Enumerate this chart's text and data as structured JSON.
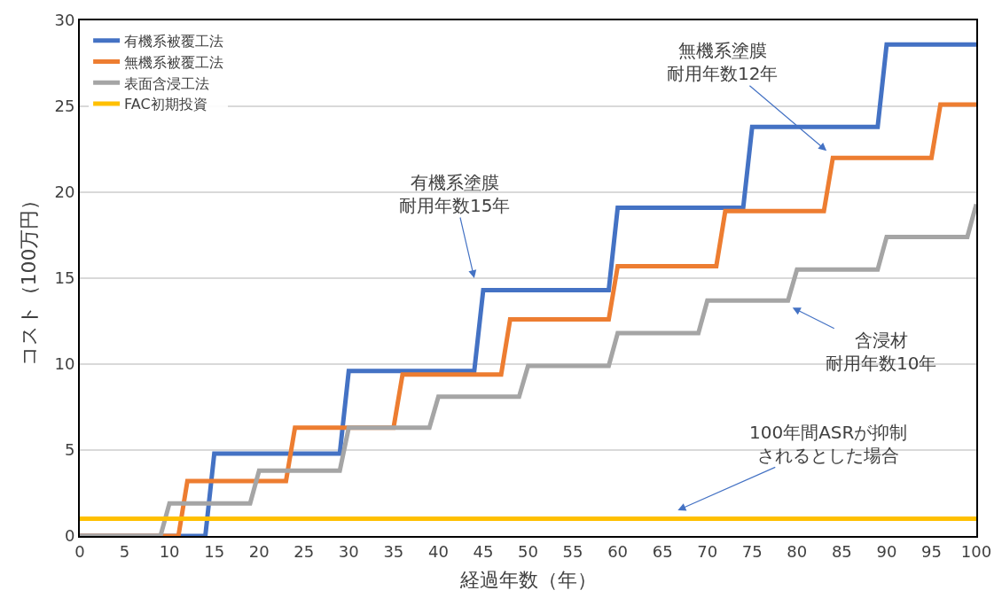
{
  "chart_data": {
    "type": "line",
    "xlabel": "経過年数（年）",
    "ylabel": "コスト（100万円）",
    "xlim": [
      0,
      100
    ],
    "xticks": [
      0,
      5,
      10,
      15,
      20,
      25,
      30,
      35,
      40,
      45,
      50,
      55,
      60,
      65,
      70,
      75,
      80,
      85,
      90,
      95,
      100
    ],
    "ylim": [
      0,
      30
    ],
    "yticks": [
      0,
      5,
      10,
      15,
      20,
      25,
      30
    ],
    "grid": "y",
    "legend": "top left",
    "marker": "none",
    "line_style": "solid",
    "series": [
      {
        "name": "有機系被覆工法",
        "color": "#4472c4",
        "x": [
          0,
          14,
          15,
          29,
          30,
          44,
          45,
          59,
          60,
          74,
          75,
          89,
          90,
          100
        ],
        "values": [
          0,
          0,
          4.8,
          4.8,
          9.6,
          9.6,
          14.3,
          14.3,
          19.1,
          19.1,
          23.8,
          23.8,
          28.6,
          28.6
        ]
      },
      {
        "name": "無機系被覆工法",
        "color": "#ed7d31",
        "x": [
          0,
          11,
          12,
          23,
          24,
          35,
          36,
          47,
          48,
          59,
          60,
          71,
          72,
          83,
          84,
          95,
          96,
          100
        ],
        "values": [
          0,
          0,
          3.2,
          3.2,
          6.3,
          6.3,
          9.4,
          9.4,
          12.6,
          12.6,
          15.7,
          15.7,
          18.9,
          18.9,
          22.0,
          22.0,
          25.1,
          25.1
        ]
      },
      {
        "name": "表面含浸工法",
        "color": "#a5a5a5",
        "x": [
          0,
          9,
          10,
          19,
          20,
          29,
          30,
          39,
          40,
          49,
          50,
          59,
          60,
          69,
          70,
          79,
          80,
          89,
          90,
          99,
          100
        ],
        "values": [
          0,
          0,
          1.9,
          1.9,
          3.8,
          3.8,
          6.3,
          6.3,
          8.1,
          8.1,
          9.9,
          9.9,
          11.8,
          11.8,
          13.7,
          13.7,
          15.5,
          15.5,
          17.4,
          17.4,
          19.3
        ]
      },
      {
        "name": "FAC初期投資",
        "color": "#ffc000",
        "x": [
          0,
          100
        ],
        "values": [
          1.0,
          1.0
        ]
      }
    ],
    "annotations": [
      "有機系塗膜耐用年数15年",
      "無機系塗膜耐用年数12年",
      "含浸材耐用年数10年",
      "100年間ASRが抑制されるとした場合"
    ]
  }
}
